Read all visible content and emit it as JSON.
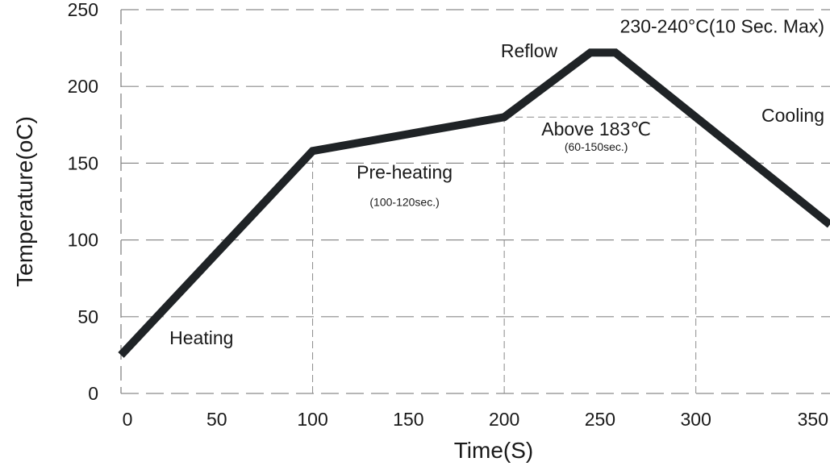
{
  "chart_data": {
    "type": "line",
    "title": "",
    "xlabel": "Time(S)",
    "ylabel": "Temperature(oC)",
    "xlim": [
      0,
      370
    ],
    "ylim": [
      0,
      250
    ],
    "xticks": [
      0,
      50,
      100,
      150,
      200,
      250,
      300,
      350
    ],
    "yticks": [
      0,
      50,
      100,
      150,
      200,
      250
    ],
    "grid": {
      "horizontal": true,
      "vertical_at_x": [
        100,
        200,
        300
      ]
    },
    "line_color": "#1f2326",
    "series": [
      {
        "points": [
          {
            "x": 0,
            "y": 25
          },
          {
            "x": 100,
            "y": 158
          },
          {
            "x": 200,
            "y": 180
          },
          {
            "x": 245,
            "y": 222
          },
          {
            "x": 258,
            "y": 222
          },
          {
            "x": 370,
            "y": 110
          }
        ]
      }
    ],
    "annotations": [
      {
        "id": "heating",
        "text": "Heating",
        "x": 42,
        "y": 32,
        "size": "big"
      },
      {
        "id": "preheat",
        "text": "Pre-heating",
        "x": 148,
        "y": 140,
        "size": "big"
      },
      {
        "id": "preheat_time",
        "text": "(100-120sec.)",
        "x": 148,
        "y": 122,
        "size": "small"
      },
      {
        "id": "above183",
        "text": "Above 183℃",
        "x": 248,
        "y": 168,
        "size": "big"
      },
      {
        "id": "above183_time",
        "text": "(60-150sec.)",
        "x": 248,
        "y": 158,
        "size": "small"
      },
      {
        "id": "reflow",
        "text": "Reflow",
        "x": 213,
        "y": 219,
        "size": "big"
      },
      {
        "id": "peak",
        "text": "230-240°C(10 Sec. Max)",
        "x": 315,
        "y": 235,
        "size": "big"
      },
      {
        "id": "cooling",
        "text": "Cooling",
        "x": 345,
        "y": 177,
        "size": "big"
      }
    ],
    "reference_lines": [
      {
        "from_x": 200,
        "to_x": 300,
        "y": 180
      }
    ]
  }
}
